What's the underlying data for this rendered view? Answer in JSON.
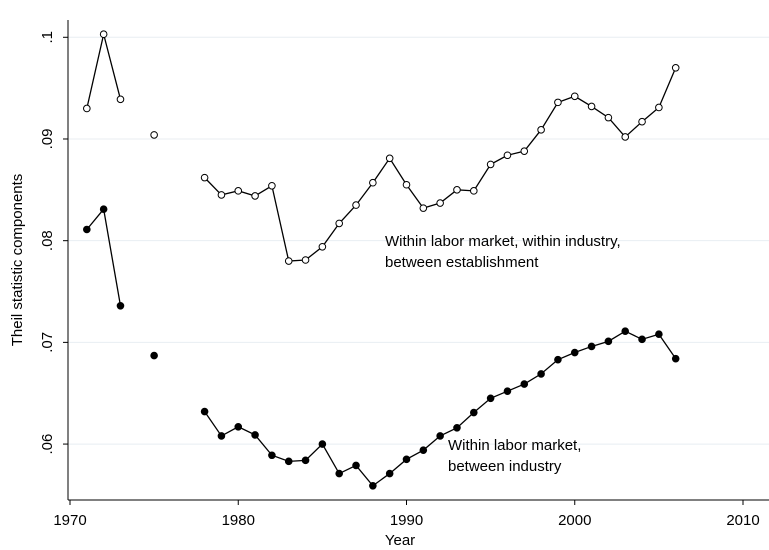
{
  "chart_data": {
    "type": "line",
    "xlabel": "Year",
    "ylabel": "Theil statistic components",
    "x": [
      1971,
      1972,
      1973,
      1974,
      1975,
      1976,
      1977,
      1978,
      1979,
      1980,
      1981,
      1982,
      1983,
      1984,
      1985,
      1986,
      1987,
      1988,
      1989,
      1990,
      1991,
      1992,
      1993,
      1994,
      1995,
      1996,
      1997,
      1998,
      1999,
      2000,
      2001,
      2002,
      2003,
      2004,
      2005,
      2006
    ],
    "series": [
      {
        "color": "#000000",
        "fill": "#ffffff",
        "values": [
          0.093,
          0.1003,
          0.0939,
          null,
          0.0904,
          null,
          null,
          0.0862,
          0.0845,
          0.0849,
          0.0844,
          0.0854,
          0.078,
          0.0781,
          0.0794,
          0.0817,
          0.0835,
          0.0857,
          0.0881,
          0.0855,
          0.0832,
          0.0837,
          0.085,
          0.0849,
          0.0875,
          0.0884,
          0.0888,
          0.0909,
          0.0936,
          0.0942,
          0.0932,
          0.0921,
          0.0902,
          0.0917,
          0.0931,
          0.097
        ]
      },
      {
        "color": "#000000",
        "fill": "#000000",
        "values": [
          0.0811,
          0.0831,
          0.0736,
          null,
          0.0687,
          null,
          null,
          0.0632,
          0.0608,
          0.0617,
          0.0609,
          0.0589,
          0.0583,
          0.0584,
          0.06,
          0.0571,
          0.0579,
          0.0559,
          0.0571,
          0.0585,
          0.0594,
          0.0608,
          0.0616,
          0.0631,
          0.0645,
          0.0652,
          0.0659,
          0.0669,
          0.0683,
          0.069,
          0.0696,
          0.0701,
          0.0711,
          0.0703,
          0.0708,
          0.0684
        ]
      }
    ],
    "annotations": [
      [
        "Within labor market, within industry,",
        "between establishment"
      ],
      [
        "Within labor market,",
        "between industry"
      ]
    ],
    "xlim": [
      1970,
      2010
    ],
    "xticks": [
      1970,
      1980,
      1990,
      2000,
      2010
    ],
    "ylim": [
      0.0545,
      0.1017
    ],
    "yticks": [
      {
        "value": 0.06,
        "label": ".06"
      },
      {
        "value": 0.07,
        "label": ".07"
      },
      {
        "value": 0.08,
        "label": ".08"
      },
      {
        "value": 0.09,
        "label": ".09"
      },
      {
        "value": 0.1,
        "label": ".1"
      }
    ],
    "grid": true
  }
}
